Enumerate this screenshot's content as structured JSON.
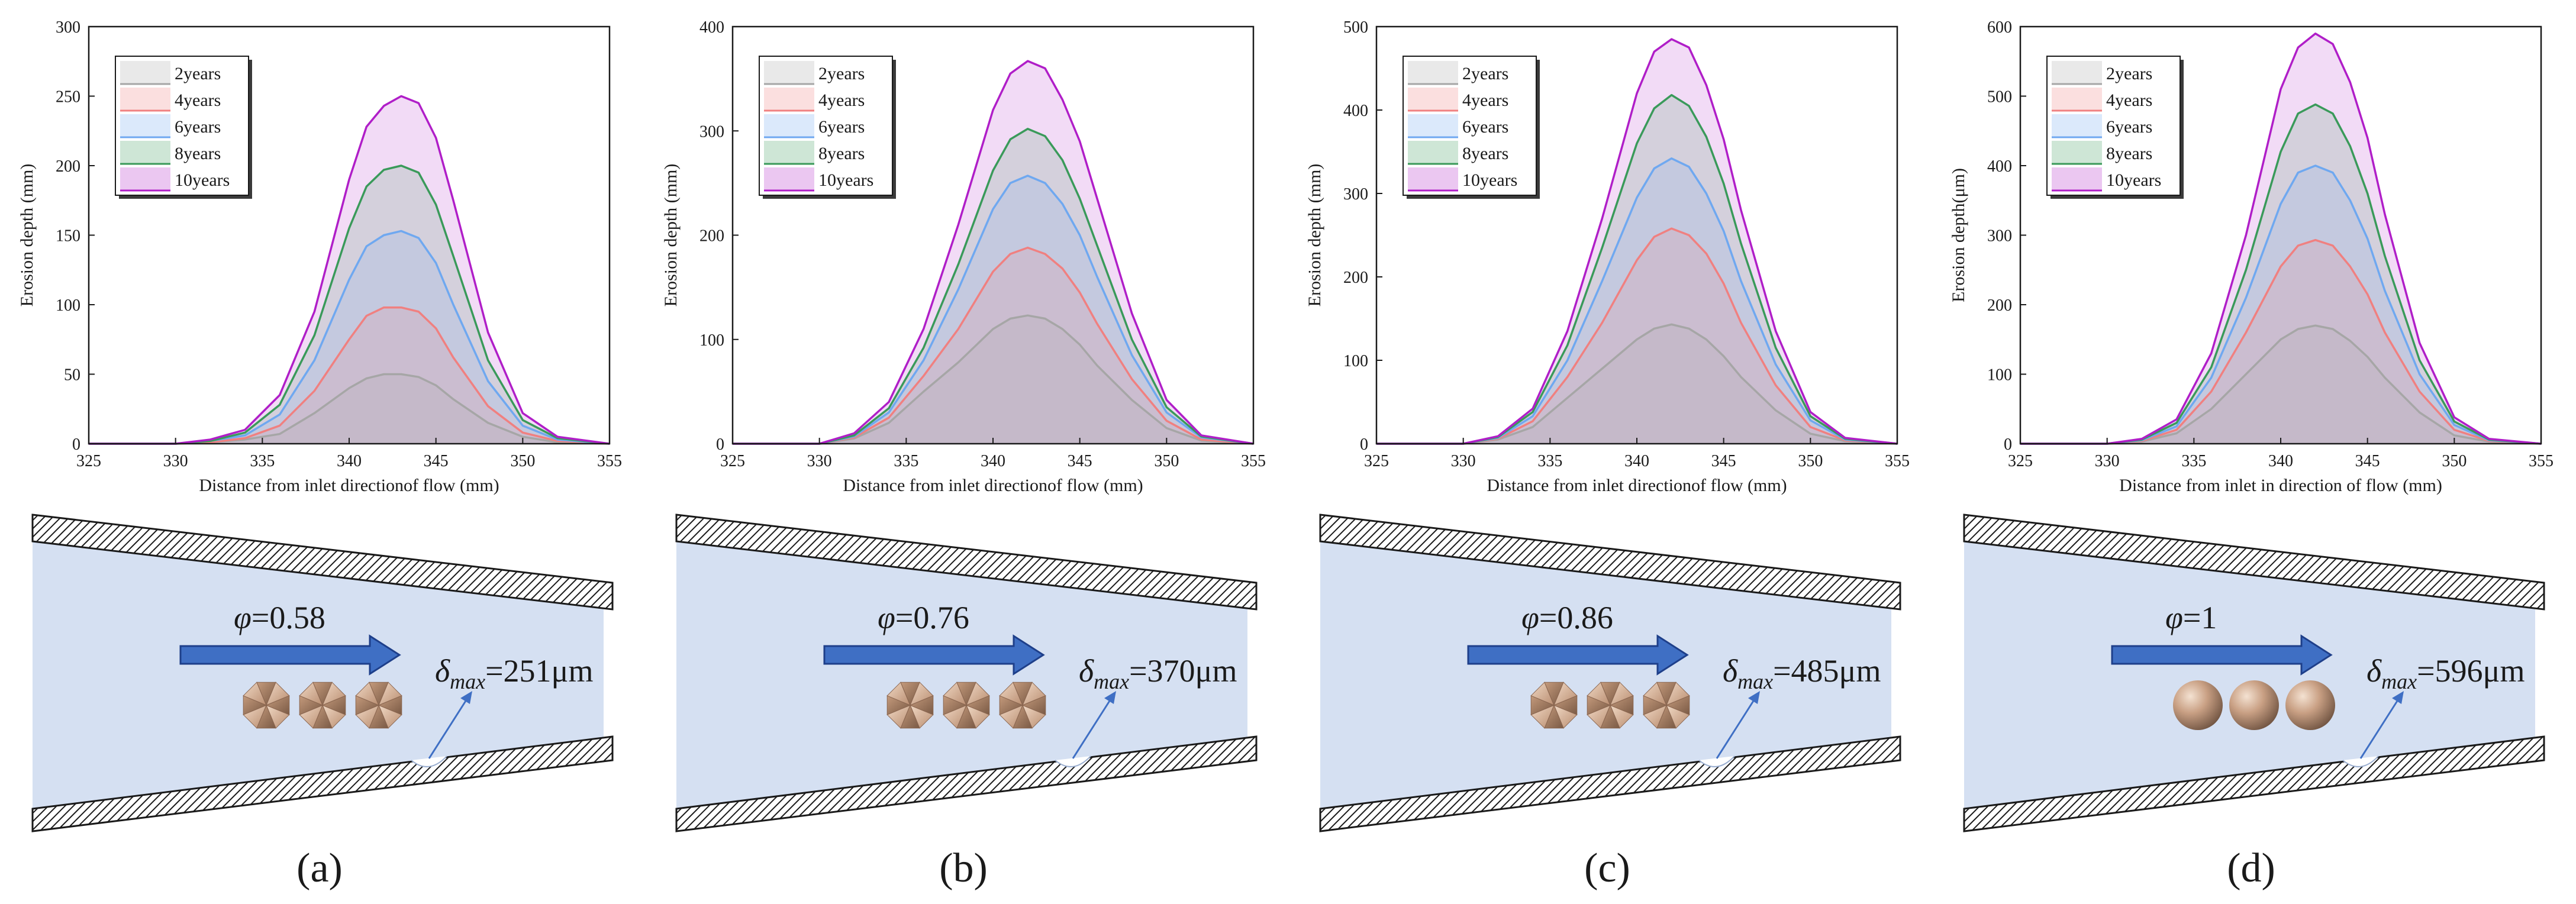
{
  "colors": {
    "year_2": "#a6a6a6",
    "year_4": "#f08080",
    "year_6": "#6fa8f0",
    "year_8": "#3a9a5a",
    "year_10": "#b01ec8",
    "channel_fill": "#d5e0f2",
    "arrow_fill": "#3f6fc4",
    "arrow_stroke": "#1e3f8a"
  },
  "panels": [
    {
      "label": "(a)",
      "phi_symbol": "φ",
      "phi_text": "=0.58",
      "delta_symbol": "δ",
      "delta_sub": "max",
      "delta_text": "=251μm",
      "particle_shape": "faceted",
      "chart_data": {
        "type": "area",
        "title": "",
        "xlabel": "Distance from inlet directionof flow (mm)",
        "ylabel": "Erosion depth (mm)",
        "xlim": [
          325,
          355
        ],
        "ylim": [
          0,
          300
        ],
        "xticks": [
          "325",
          "330",
          "335",
          "340",
          "345",
          "350",
          "355"
        ],
        "yticks": [
          "0",
          "50",
          "100",
          "150",
          "200",
          "250",
          "300"
        ],
        "legend": "top-left",
        "x": [
          325,
          330,
          332,
          334,
          336,
          338,
          340,
          341,
          342,
          343,
          344,
          345,
          346,
          348,
          350,
          352,
          355
        ],
        "series": [
          {
            "name": "2years",
            "color_key": "year_2",
            "values": [
              0,
              0,
              1,
              3,
              7,
              22,
              40,
              47,
              50,
              50,
              48,
              42,
              32,
              15,
              5,
              1,
              0
            ]
          },
          {
            "name": "4years",
            "color_key": "year_4",
            "values": [
              0,
              0,
              1,
              4,
              13,
              38,
              75,
              92,
              98,
              98,
              95,
              83,
              62,
              27,
              8,
              2,
              0
            ]
          },
          {
            "name": "6years",
            "color_key": "year_6",
            "values": [
              0,
              0,
              2,
              6,
              21,
              60,
              118,
              142,
              150,
              153,
              148,
              130,
              100,
              45,
              13,
              3,
              0
            ]
          },
          {
            "name": "8years",
            "color_key": "year_8",
            "values": [
              0,
              0,
              2,
              8,
              28,
              78,
              155,
              185,
              197,
              200,
              195,
              172,
              135,
              60,
              17,
              4,
              0
            ]
          },
          {
            "name": "10years",
            "color_key": "year_10",
            "values": [
              0,
              0,
              3,
              10,
              35,
              95,
              190,
              228,
              243,
              250,
              245,
              220,
              175,
              80,
              22,
              5,
              0
            ]
          }
        ]
      }
    },
    {
      "label": "(b)",
      "phi_symbol": "φ",
      "phi_text": "=0.76",
      "delta_symbol": "δ",
      "delta_sub": "max",
      "delta_text": "=370μm",
      "particle_shape": "faceted",
      "chart_data": {
        "type": "area",
        "title": "",
        "xlabel": "Distance from inlet directionof flow (mm)",
        "ylabel": "Erosion depth (mm)",
        "xlim": [
          325,
          355
        ],
        "ylim": [
          0,
          400
        ],
        "xticks": [
          "325",
          "330",
          "335",
          "340",
          "345",
          "350",
          "355"
        ],
        "yticks": [
          "0",
          "100",
          "200",
          "300",
          "400"
        ],
        "legend": "top-left",
        "x": [
          325,
          330,
          332,
          334,
          336,
          338,
          340,
          341,
          342,
          343,
          344,
          345,
          346,
          348,
          350,
          352,
          355
        ],
        "series": [
          {
            "name": "2years",
            "color_key": "year_2",
            "values": [
              0,
              0,
              5,
              20,
              50,
              78,
              110,
              120,
              123,
              120,
              110,
              95,
              75,
              42,
              15,
              3,
              0
            ]
          },
          {
            "name": "4years",
            "color_key": "year_4",
            "values": [
              0,
              0,
              6,
              25,
              65,
              110,
              165,
              182,
              188,
              182,
              168,
              145,
              115,
              62,
              22,
              4,
              0
            ]
          },
          {
            "name": "6years",
            "color_key": "year_6",
            "values": [
              0,
              0,
              7,
              30,
              80,
              148,
              225,
              250,
              257,
              250,
              230,
              200,
              160,
              85,
              30,
              6,
              0
            ]
          },
          {
            "name": "8years",
            "color_key": "year_8",
            "values": [
              0,
              0,
              8,
              34,
              92,
              172,
              262,
              292,
              302,
              295,
              272,
              235,
              190,
              100,
              35,
              7,
              0
            ]
          },
          {
            "name": "10years",
            "color_key": "year_10",
            "values": [
              0,
              0,
              10,
              40,
              110,
              210,
              320,
              355,
              367,
              360,
              330,
              290,
              235,
              125,
              42,
              8,
              0
            ]
          }
        ]
      }
    },
    {
      "label": "(c)",
      "phi_symbol": "φ",
      "phi_text": "=0.86",
      "delta_symbol": "δ",
      "delta_sub": "max",
      "delta_text": "=485μm",
      "particle_shape": "faceted",
      "chart_data": {
        "type": "area",
        "title": "",
        "xlabel": "Distance from inlet directionof flow (mm)",
        "ylabel": "Erosion depth (mm)",
        "xlim": [
          325,
          355
        ],
        "ylim": [
          0,
          500
        ],
        "xticks": [
          "325",
          "330",
          "335",
          "340",
          "345",
          "350",
          "355"
        ],
        "yticks": [
          "0",
          "100",
          "200",
          "300",
          "400",
          "500"
        ],
        "legend": "top-left",
        "x": [
          325,
          330,
          332,
          334,
          336,
          338,
          340,
          341,
          342,
          343,
          344,
          345,
          346,
          348,
          350,
          352,
          355
        ],
        "series": [
          {
            "name": "2years",
            "color_key": "year_2",
            "values": [
              0,
              0,
              5,
              20,
              55,
              90,
              125,
              138,
              143,
              138,
              125,
              105,
              80,
              40,
              12,
              3,
              0
            ]
          },
          {
            "name": "4years",
            "color_key": "year_4",
            "values": [
              0,
              0,
              6,
              27,
              80,
              145,
              220,
              248,
              258,
              250,
              228,
              192,
              145,
              70,
              20,
              4,
              0
            ]
          },
          {
            "name": "6years",
            "color_key": "year_6",
            "values": [
              0,
              0,
              7,
              33,
              100,
              195,
              295,
              330,
              342,
              332,
              300,
              255,
              195,
              95,
              28,
              5,
              0
            ]
          },
          {
            "name": "8years",
            "color_key": "year_8",
            "values": [
              0,
              0,
              8,
              38,
              118,
              235,
              360,
              402,
              418,
              405,
              368,
              312,
              240,
              115,
              33,
              6,
              0
            ]
          },
          {
            "name": "10years",
            "color_key": "year_10",
            "values": [
              0,
              0,
              9,
              42,
              135,
              270,
              420,
              470,
              485,
              475,
              430,
              365,
              280,
              135,
              38,
              7,
              0
            ]
          }
        ]
      }
    },
    {
      "label": "(d)",
      "phi_symbol": "φ",
      "phi_text": "=1",
      "delta_symbol": "δ",
      "delta_sub": "max",
      "delta_text": "=596μm",
      "particle_shape": "sphere",
      "chart_data": {
        "type": "area",
        "title": "",
        "xlabel": "Distance from inlet in direction of flow (mm)",
        "ylabel": "Erosion depth(μm)",
        "xlim": [
          325,
          355
        ],
        "ylim": [
          0,
          600
        ],
        "xticks": [
          "325",
          "330",
          "335",
          "340",
          "345",
          "350",
          "355"
        ],
        "yticks": [
          "0",
          "100",
          "200",
          "300",
          "400",
          "500",
          "600"
        ],
        "legend": "top-left",
        "x": [
          325,
          330,
          332,
          334,
          336,
          338,
          340,
          341,
          342,
          343,
          344,
          345,
          346,
          348,
          350,
          352,
          355
        ],
        "series": [
          {
            "name": "2years",
            "color_key": "year_2",
            "values": [
              0,
              0,
              3,
              15,
              50,
              100,
              150,
              165,
              170,
              165,
              148,
              125,
              95,
              45,
              12,
              3,
              0
            ]
          },
          {
            "name": "4years",
            "color_key": "year_4",
            "values": [
              0,
              0,
              4,
              20,
              75,
              160,
              255,
              285,
              293,
              285,
              255,
              215,
              160,
              75,
              20,
              4,
              0
            ]
          },
          {
            "name": "6years",
            "color_key": "year_6",
            "values": [
              0,
              0,
              5,
              25,
              95,
              210,
              345,
              390,
              400,
              390,
              350,
              295,
              220,
              100,
              27,
              5,
              0
            ]
          },
          {
            "name": "8years",
            "color_key": "year_8",
            "values": [
              0,
              0,
              6,
              30,
              110,
              250,
              420,
              475,
              488,
              475,
              428,
              360,
              270,
              120,
              32,
              6,
              0
            ]
          },
          {
            "name": "10years",
            "color_key": "year_10",
            "values": [
              0,
              0,
              7,
              35,
              130,
              300,
              510,
              570,
              590,
              575,
              520,
              440,
              330,
              145,
              38,
              7,
              0
            ]
          }
        ]
      }
    }
  ]
}
